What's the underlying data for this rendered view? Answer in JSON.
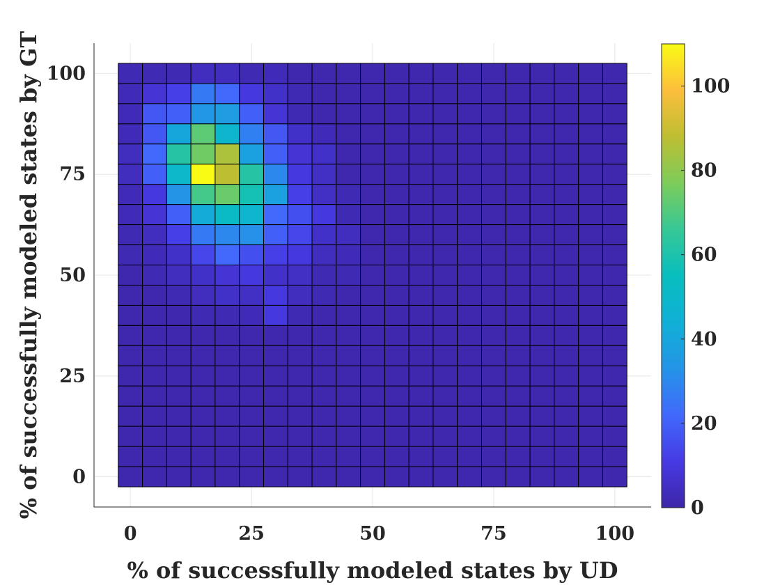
{
  "chart_data": {
    "type": "heatmap",
    "title": "",
    "xlabel": "% of successfully modeled states by UD",
    "ylabel": "% of successfully modeled states by GT",
    "xlim": [
      -7.5,
      107.5
    ],
    "ylim": [
      -7.5,
      107.5
    ],
    "x_ticks": [
      0,
      25,
      50,
      75,
      100
    ],
    "y_ticks": [
      0,
      25,
      50,
      75,
      100
    ],
    "x_tick_labels": [
      "0",
      "25",
      "50",
      "75",
      "100"
    ],
    "y_tick_labels": [
      "0",
      "25",
      "50",
      "75",
      "100"
    ],
    "bin_width": 5,
    "x_centers": [
      0,
      5,
      10,
      15,
      20,
      25,
      30,
      35,
      40,
      45,
      50,
      55,
      60,
      65,
      70,
      75,
      80,
      85,
      90,
      95,
      100
    ],
    "y_centers": [
      100,
      95,
      90,
      85,
      80,
      75,
      70,
      65,
      60,
      55,
      50,
      45,
      40,
      35,
      30,
      25,
      20,
      15,
      10,
      5,
      0
    ],
    "values": [
      [
        2,
        2,
        2,
        4,
        4,
        2,
        3,
        1,
        1,
        1,
        1,
        1,
        1,
        1,
        1,
        1,
        1,
        1,
        1,
        1,
        1
      ],
      [
        3,
        8,
        12,
        26,
        22,
        10,
        6,
        2,
        1,
        1,
        1,
        1,
        1,
        1,
        1,
        1,
        1,
        1,
        1,
        1,
        1
      ],
      [
        3,
        18,
        20,
        34,
        36,
        20,
        8,
        2,
        1,
        1,
        1,
        1,
        1,
        1,
        1,
        1,
        1,
        1,
        1,
        1,
        1
      ],
      [
        3,
        18,
        40,
        72,
        48,
        28,
        18,
        6,
        3,
        1,
        1,
        1,
        1,
        1,
        1,
        1,
        1,
        1,
        1,
        1,
        1
      ],
      [
        4,
        22,
        62,
        75,
        85,
        38,
        20,
        8,
        6,
        1,
        1,
        1,
        1,
        1,
        1,
        1,
        1,
        1,
        1,
        1,
        1
      ],
      [
        4,
        20,
        50,
        110,
        88,
        62,
        30,
        10,
        5,
        1,
        1,
        1,
        1,
        1,
        1,
        1,
        1,
        1,
        1,
        1,
        1
      ],
      [
        3,
        10,
        33,
        68,
        74,
        58,
        38,
        12,
        5,
        2,
        1,
        1,
        1,
        1,
        1,
        1,
        1,
        1,
        1,
        1,
        1
      ],
      [
        3,
        8,
        20,
        42,
        52,
        48,
        22,
        16,
        10,
        2,
        1,
        1,
        1,
        1,
        1,
        1,
        1,
        1,
        1,
        1,
        1
      ],
      [
        2,
        4,
        12,
        26,
        30,
        32,
        20,
        14,
        6,
        4,
        1,
        1,
        1,
        1,
        1,
        1,
        1,
        1,
        1,
        1,
        1
      ],
      [
        2,
        3,
        6,
        14,
        22,
        16,
        12,
        10,
        4,
        3,
        1,
        1,
        1,
        1,
        1,
        1,
        1,
        1,
        1,
        1,
        1
      ],
      [
        1,
        2,
        4,
        6,
        8,
        10,
        6,
        5,
        2,
        2,
        1,
        1,
        1,
        1,
        1,
        1,
        1,
        1,
        1,
        1,
        1
      ],
      [
        1,
        1,
        2,
        4,
        6,
        5,
        10,
        4,
        2,
        1,
        1,
        1,
        1,
        1,
        1,
        1,
        1,
        1,
        1,
        1,
        1
      ],
      [
        1,
        1,
        1,
        2,
        2,
        3,
        10,
        2,
        1,
        1,
        1,
        1,
        1,
        1,
        1,
        1,
        1,
        1,
        1,
        1,
        1
      ],
      [
        1,
        1,
        1,
        1,
        1,
        1,
        1,
        1,
        1,
        1,
        1,
        1,
        1,
        1,
        1,
        1,
        1,
        1,
        1,
        1,
        1
      ],
      [
        1,
        1,
        1,
        1,
        1,
        1,
        1,
        1,
        1,
        1,
        1,
        1,
        1,
        1,
        1,
        1,
        1,
        1,
        1,
        1,
        1
      ],
      [
        1,
        1,
        1,
        1,
        1,
        1,
        1,
        1,
        1,
        1,
        1,
        1,
        1,
        1,
        1,
        1,
        1,
        1,
        1,
        1,
        1
      ],
      [
        1,
        1,
        1,
        1,
        1,
        1,
        1,
        1,
        1,
        1,
        1,
        1,
        1,
        1,
        1,
        1,
        1,
        1,
        1,
        1,
        1
      ],
      [
        1,
        1,
        1,
        1,
        1,
        1,
        1,
        1,
        1,
        1,
        1,
        1,
        1,
        1,
        1,
        1,
        1,
        1,
        1,
        1,
        1
      ],
      [
        1,
        1,
        1,
        1,
        1,
        1,
        1,
        1,
        1,
        1,
        1,
        1,
        1,
        1,
        1,
        1,
        1,
        1,
        1,
        1,
        1
      ],
      [
        1,
        1,
        1,
        1,
        1,
        1,
        1,
        1,
        1,
        1,
        1,
        1,
        1,
        1,
        1,
        1,
        1,
        1,
        1,
        1,
        1
      ],
      [
        1,
        1,
        1,
        1,
        1,
        1,
        1,
        1,
        1,
        1,
        1,
        1,
        1,
        1,
        1,
        1,
        1,
        1,
        1,
        1,
        1
      ]
    ],
    "colorbar": {
      "min": 0,
      "max": 110,
      "ticks": [
        0,
        20,
        40,
        60,
        80,
        100
      ],
      "tick_labels": [
        "0",
        "20",
        "40",
        "60",
        "80",
        "100"
      ],
      "colormap": "parula"
    },
    "grid": true,
    "cell_edge_color": "#000000"
  }
}
